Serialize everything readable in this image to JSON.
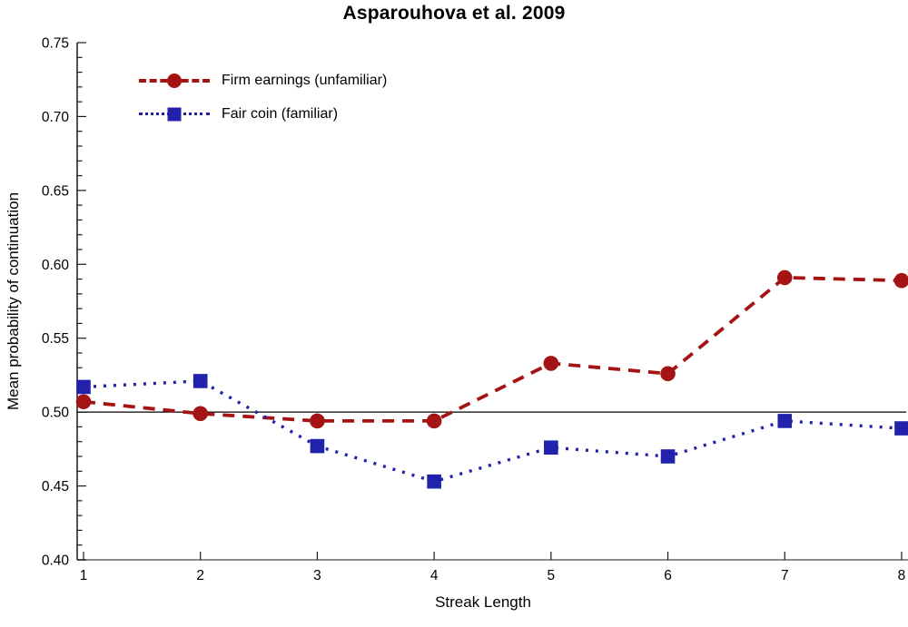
{
  "title": "Asparouhova et al. 2009",
  "colors": {
    "firm_earnings": "#A51414",
    "fair_coin": "#2121AC",
    "axis_line": "#8c8c8c",
    "spine": "#1a1a1a",
    "reference_line": "#000000",
    "text": "#000000",
    "background": "#ffffff"
  },
  "chart_data": {
    "type": "line",
    "title": "Asparouhova et al. 2009",
    "xlabel": "Streak Length",
    "ylabel": "Mean probability of continuation",
    "x": [
      1,
      2,
      3,
      4,
      5,
      6,
      7,
      8
    ],
    "x_tick_labels": [
      "1",
      "2",
      "3",
      "4",
      "5",
      "6",
      "7",
      "8"
    ],
    "xlim": [
      1,
      8
    ],
    "ylim": [
      0.4,
      0.75
    ],
    "y_tick_labels": [
      "0.40",
      "0.45",
      "0.50",
      "0.55",
      "0.60",
      "0.65",
      "0.70",
      "0.75"
    ],
    "y_major_step": 0.05,
    "y_minor_step": 0.01,
    "reference_line_y": 0.5,
    "grid": false,
    "legend_position": "top-left-inside",
    "series": [
      {
        "name": "Firm earnings (unfamiliar)",
        "color": "#A51414",
        "line_style": "dashed",
        "marker": "circle",
        "values": [
          0.507,
          0.499,
          0.494,
          0.494,
          0.533,
          0.526,
          0.591,
          0.589
        ]
      },
      {
        "name": "Fair coin (familiar)",
        "color": "#2121AC",
        "line_style": "dotted",
        "marker": "square",
        "values": [
          0.517,
          0.521,
          0.477,
          0.453,
          0.476,
          0.47,
          0.494,
          0.489
        ]
      }
    ]
  }
}
